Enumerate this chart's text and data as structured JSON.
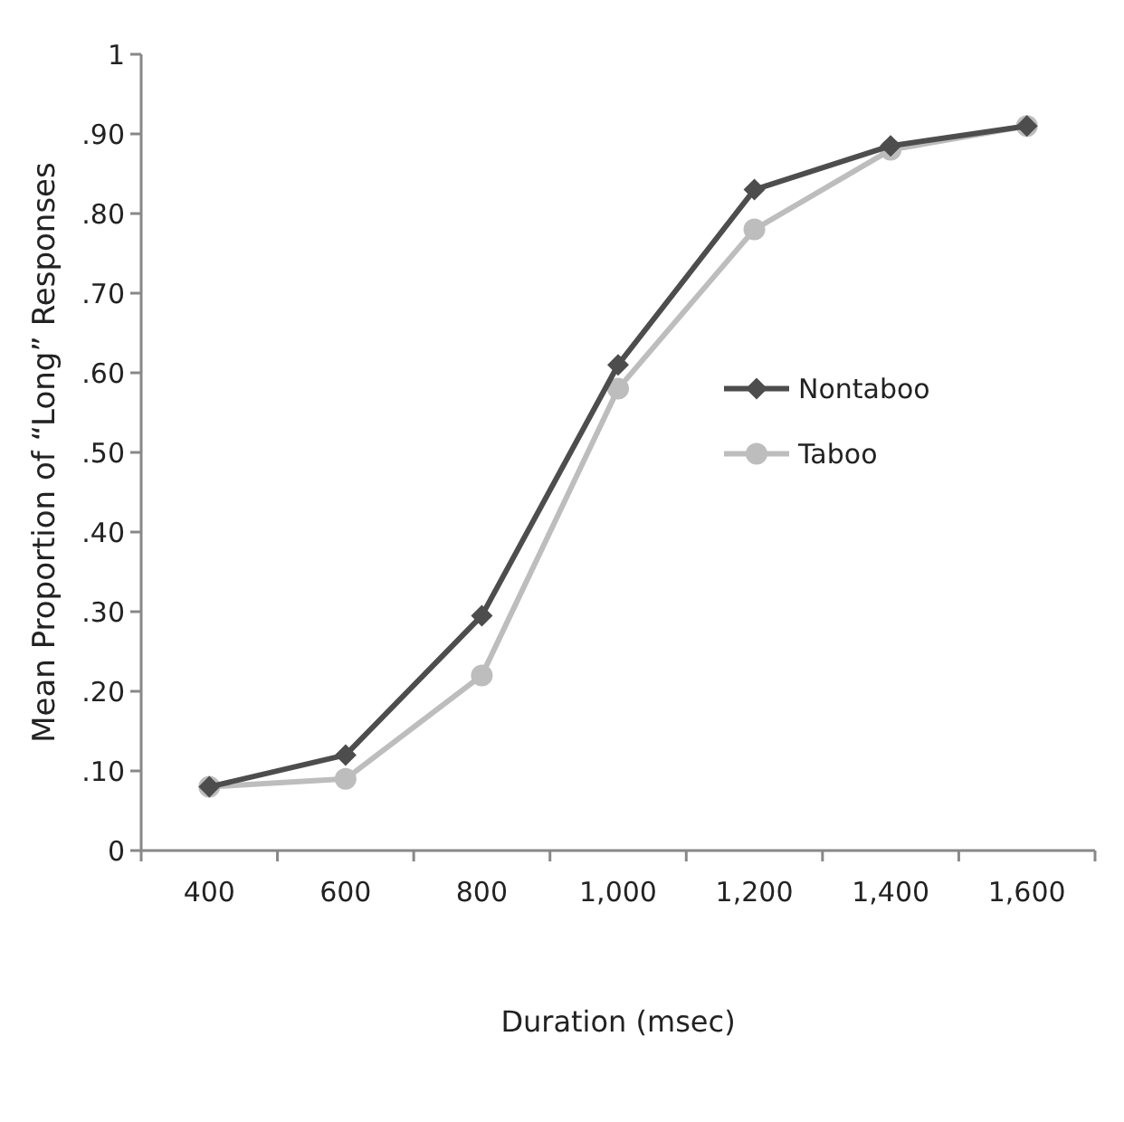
{
  "chart_data": {
    "type": "line",
    "xlabel": "Duration (msec)",
    "ylabel": "Mean Proportion of “Long” Responses",
    "categories": [
      "400",
      "600",
      "800",
      "1,000",
      "1,200",
      "1,400",
      "1,600"
    ],
    "series": [
      {
        "name": "Nontaboo",
        "color": "#4d4d4d",
        "marker": "diamond",
        "values": [
          0.08,
          0.12,
          0.295,
          0.61,
          0.83,
          0.885,
          0.91
        ]
      },
      {
        "name": "Taboo",
        "color": "#bdbdbd",
        "marker": "circle",
        "values": [
          0.08,
          0.09,
          0.22,
          0.58,
          0.78,
          0.88,
          0.91
        ]
      }
    ],
    "ylim": [
      0,
      1
    ],
    "yticks": [
      0,
      {
        "value": 0.1,
        "label": ".10"
      },
      {
        "value": 0.2,
        "label": ".20"
      },
      {
        "value": 0.3,
        "label": ".30"
      },
      {
        "value": 0.4,
        "label": ".40"
      },
      {
        "value": 0.5,
        "label": ".50"
      },
      {
        "value": 0.6,
        "label": ".60"
      },
      {
        "value": 0.7,
        "label": ".70"
      },
      {
        "value": 0.8,
        "label": ".80"
      },
      {
        "value": 0.9,
        "label": ".90"
      },
      1
    ],
    "grid": false,
    "legend": "right",
    "line_style": "solid"
  }
}
